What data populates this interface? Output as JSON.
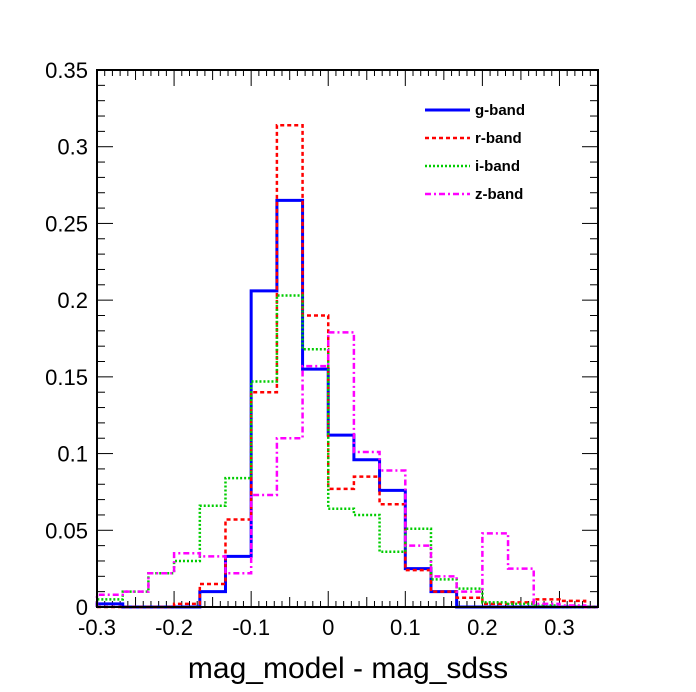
{
  "chart_data": {
    "type": "histogram",
    "title": "",
    "xlabel": "mag_model - mag_sdss",
    "ylabel": "",
    "xlim": [
      -0.3,
      0.35
    ],
    "ylim": [
      0,
      0.35
    ],
    "grid": false,
    "legend_position": "top-right",
    "x_ticks": [
      {
        "value": -0.3,
        "label": "-0.3"
      },
      {
        "value": -0.2,
        "label": "-0.2"
      },
      {
        "value": -0.1,
        "label": "-0.1"
      },
      {
        "value": 0,
        "label": "0"
      },
      {
        "value": 0.1,
        "label": "0.1"
      },
      {
        "value": 0.2,
        "label": "0.2"
      },
      {
        "value": 0.3,
        "label": "0.3"
      }
    ],
    "y_ticks": [
      {
        "value": 0,
        "label": "0"
      },
      {
        "value": 0.05,
        "label": "0.05"
      },
      {
        "value": 0.1,
        "label": "0.1"
      },
      {
        "value": 0.15,
        "label": "0.15"
      },
      {
        "value": 0.2,
        "label": "0.2"
      },
      {
        "value": 0.25,
        "label": "0.25"
      },
      {
        "value": 0.3,
        "label": "0.3"
      },
      {
        "value": 0.35,
        "label": "0.35"
      }
    ],
    "bin_edges": [
      -0.3,
      -0.2666,
      -0.2333,
      -0.2,
      -0.1666,
      -0.1333,
      -0.1,
      -0.0666,
      -0.0333,
      0,
      0.0333,
      0.0666,
      0.1,
      0.1333,
      0.1666,
      0.2,
      0.2333,
      0.2666,
      0.3,
      0.3333,
      0.35
    ],
    "series": [
      {
        "name": "g-band",
        "color": "#0000ff",
        "dash": "",
        "values": [
          0.002,
          0,
          0,
          0,
          0.01,
          0.033,
          0.206,
          0.265,
          0.155,
          0.112,
          0.096,
          0.076,
          0.025,
          0.01,
          0,
          0,
          0,
          0,
          0,
          0
        ]
      },
      {
        "name": "r-band",
        "color": "#ff0000",
        "dash": "4,3",
        "values": [
          0,
          0,
          0,
          0.002,
          0.015,
          0.057,
          0.14,
          0.314,
          0.19,
          0.077,
          0.085,
          0.067,
          0.024,
          0.01,
          0.006,
          0.002,
          0.003,
          0.005,
          0.004,
          0
        ]
      },
      {
        "name": "i-band",
        "color": "#00cc00",
        "dash": "2,2",
        "values": [
          0.005,
          0.01,
          0.022,
          0.03,
          0.066,
          0.084,
          0.147,
          0.203,
          0.168,
          0.064,
          0.06,
          0.036,
          0.051,
          0.018,
          0.012,
          0.003,
          0.002,
          0.001,
          0,
          0
        ]
      },
      {
        "name": "z-band",
        "color": "#ff00ff",
        "dash": "6,3,2,3",
        "values": [
          0.008,
          0.01,
          0.022,
          0.035,
          0.033,
          0.022,
          0.073,
          0.11,
          0.157,
          0.179,
          0.101,
          0.089,
          0.04,
          0.02,
          0.01,
          0.048,
          0.025,
          0.002,
          0.001,
          0
        ]
      }
    ]
  }
}
